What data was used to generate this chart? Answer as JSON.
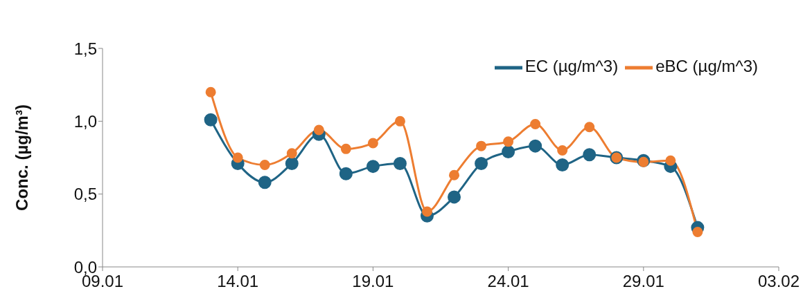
{
  "chart_data": {
    "type": "line",
    "ylabel": "Conc. (µg/m³)",
    "x": [
      "--01-13",
      "--01-14",
      "--01-15",
      "--01-16",
      "--01-17",
      "--01-18",
      "--01-19",
      "--01-20",
      "--01-21",
      "--01-22",
      "--01-23",
      "--01-24",
      "--01-25",
      "--01-26",
      "--01-27",
      "--01-28",
      "--01-29",
      "--01-30",
      "--01-31"
    ],
    "series": [
      {
        "name": "EC (µg/m^3)",
        "color": "#1f6485",
        "values": [
          1.01,
          0.71,
          0.58,
          0.71,
          0.91,
          0.64,
          0.69,
          0.71,
          0.35,
          0.48,
          0.71,
          0.79,
          0.83,
          0.7,
          0.77,
          0.75,
          0.73,
          0.69,
          0.27
        ]
      },
      {
        "name": "eBC (µg/m^3)",
        "color": "#ed7d31",
        "values": [
          1.2,
          0.75,
          0.7,
          0.78,
          0.94,
          0.81,
          0.85,
          1.0,
          0.38,
          0.63,
          0.83,
          0.86,
          0.98,
          0.8,
          0.96,
          0.75,
          0.72,
          0.73,
          0.24
        ]
      }
    ],
    "xlim": [
      "--01-09",
      "--02-03"
    ],
    "xticks": [
      {
        "value": "--01-09",
        "label": "09.01"
      },
      {
        "value": "--01-14",
        "label": "14.01"
      },
      {
        "value": "--01-19",
        "label": "19.01"
      },
      {
        "value": "--01-24",
        "label": "24.01"
      },
      {
        "value": "--01-29",
        "label": "29.01"
      },
      {
        "value": "--02-03",
        "label": "03.02"
      }
    ],
    "ylim": [
      0,
      1.5
    ],
    "yticks": [
      {
        "value": 0,
        "label": "0,0"
      },
      {
        "value": 0.5,
        "label": "0,5"
      },
      {
        "value": 1,
        "label": "1,0"
      },
      {
        "value": 1.5,
        "label": "1,5"
      }
    ],
    "grid": false,
    "legend": "top right",
    "marker": "circle",
    "line_style": "solid"
  }
}
